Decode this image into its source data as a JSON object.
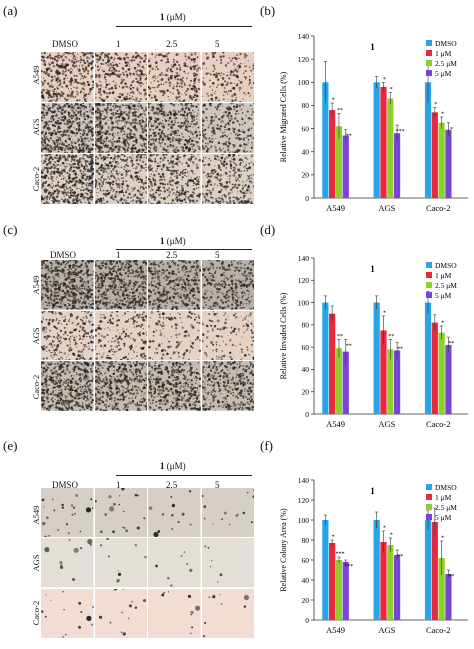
{
  "figure": {
    "panel_labels": [
      "(a)",
      "(b)",
      "(c)",
      "(d)",
      "(e)",
      "(f)"
    ],
    "compound": "1",
    "unit": "(μM)",
    "conditions": [
      "DMSO",
      "1",
      "2.5",
      "5"
    ],
    "image_rows_ab": [
      "A549",
      "AGS",
      "Caco-2"
    ],
    "image_rows_cd": [
      "A549",
      "AGS",
      "Caco-2"
    ],
    "image_rows_ef": [
      "A549",
      "AGS",
      "Caco-2"
    ]
  },
  "chart_data": [
    {
      "type": "bar",
      "panel": "(b)",
      "title": "1",
      "ylabel": "Relative Migrated Cells (%)",
      "xlabel": "",
      "ylim": [
        0,
        140
      ],
      "yticks": [
        0,
        20,
        40,
        60,
        80,
        100,
        120,
        140
      ],
      "categories": [
        "A549",
        "AGS",
        "Caco-2"
      ],
      "legend_position": "top-right",
      "series": [
        {
          "name": "DMSO",
          "color": "#2aa4e8",
          "values": [
            100,
            100,
            100
          ],
          "errors": [
            18,
            5,
            18
          ]
        },
        {
          "name": "1 μM",
          "color": "#e8283c",
          "values": [
            76,
            96,
            74
          ],
          "errors": [
            6,
            4,
            4
          ]
        },
        {
          "name": "2.5 μM",
          "color": "#8ed02a",
          "values": [
            62,
            86,
            65
          ],
          "errors": [
            11,
            5,
            5
          ]
        },
        {
          "name": "5 μM",
          "color": "#7b44d8",
          "values": [
            54,
            56,
            59
          ],
          "errors": [
            5,
            7,
            6
          ]
        }
      ],
      "annotations": [
        [
          "*",
          "*",
          "*"
        ],
        [
          "**",
          "*",
          "*"
        ],
        [
          "**",
          "***",
          "*"
        ]
      ]
    },
    {
      "type": "bar",
      "panel": "(d)",
      "title": "1",
      "ylabel": "Relative Invaded Cells (%)",
      "xlabel": "",
      "ylim": [
        0,
        140
      ],
      "yticks": [
        0,
        20,
        40,
        60,
        80,
        100,
        120,
        140
      ],
      "categories": [
        "A549",
        "AGS",
        "Caco-2"
      ],
      "legend_position": "top-right",
      "series": [
        {
          "name": "DMSO",
          "color": "#2aa4e8",
          "values": [
            100,
            100,
            100
          ],
          "errors": [
            6,
            6,
            10
          ]
        },
        {
          "name": "1 μM",
          "color": "#e8283c",
          "values": [
            90,
            75,
            82
          ],
          "errors": [
            7,
            13,
            7
          ]
        },
        {
          "name": "2.5 μM",
          "color": "#8ed02a",
          "values": [
            59,
            58,
            73
          ],
          "errors": [
            8,
            9,
            6
          ]
        },
        {
          "name": "5 μM",
          "color": "#7b44d8",
          "values": [
            56,
            57,
            62
          ],
          "errors": [
            11,
            7,
            7
          ]
        }
      ],
      "annotations": [
        [
          "",
          "*",
          ""
        ],
        [
          "**",
          "**",
          "*"
        ],
        [
          "**",
          "**",
          "**"
        ]
      ]
    },
    {
      "type": "bar",
      "panel": "(f)",
      "title": "1",
      "ylabel": "Relative Colony Area (%)",
      "xlabel": "",
      "ylim": [
        0,
        140
      ],
      "yticks": [
        0,
        20,
        40,
        60,
        80,
        100,
        120,
        140
      ],
      "categories": [
        "A549",
        "AGS",
        "Caco-2"
      ],
      "legend_position": "top-right",
      "series": [
        {
          "name": "DMSO",
          "color": "#2aa4e8",
          "values": [
            100,
            100,
            100
          ],
          "errors": [
            5,
            8,
            10
          ]
        },
        {
          "name": "1 μM",
          "color": "#e8283c",
          "values": [
            77,
            78,
            98
          ],
          "errors": [
            3,
            11,
            14
          ]
        },
        {
          "name": "2.5 μM",
          "color": "#8ed02a",
          "values": [
            60,
            75,
            62
          ],
          "errors": [
            3,
            7,
            17
          ]
        },
        {
          "name": "5 μM",
          "color": "#7b44d8",
          "values": [
            58,
            65,
            46
          ],
          "errors": [
            2,
            5,
            4
          ]
        }
      ],
      "annotations": [
        [
          "*",
          "*",
          ""
        ],
        [
          "***",
          "*",
          "*"
        ],
        [
          "***",
          "**",
          "**"
        ]
      ]
    }
  ]
}
